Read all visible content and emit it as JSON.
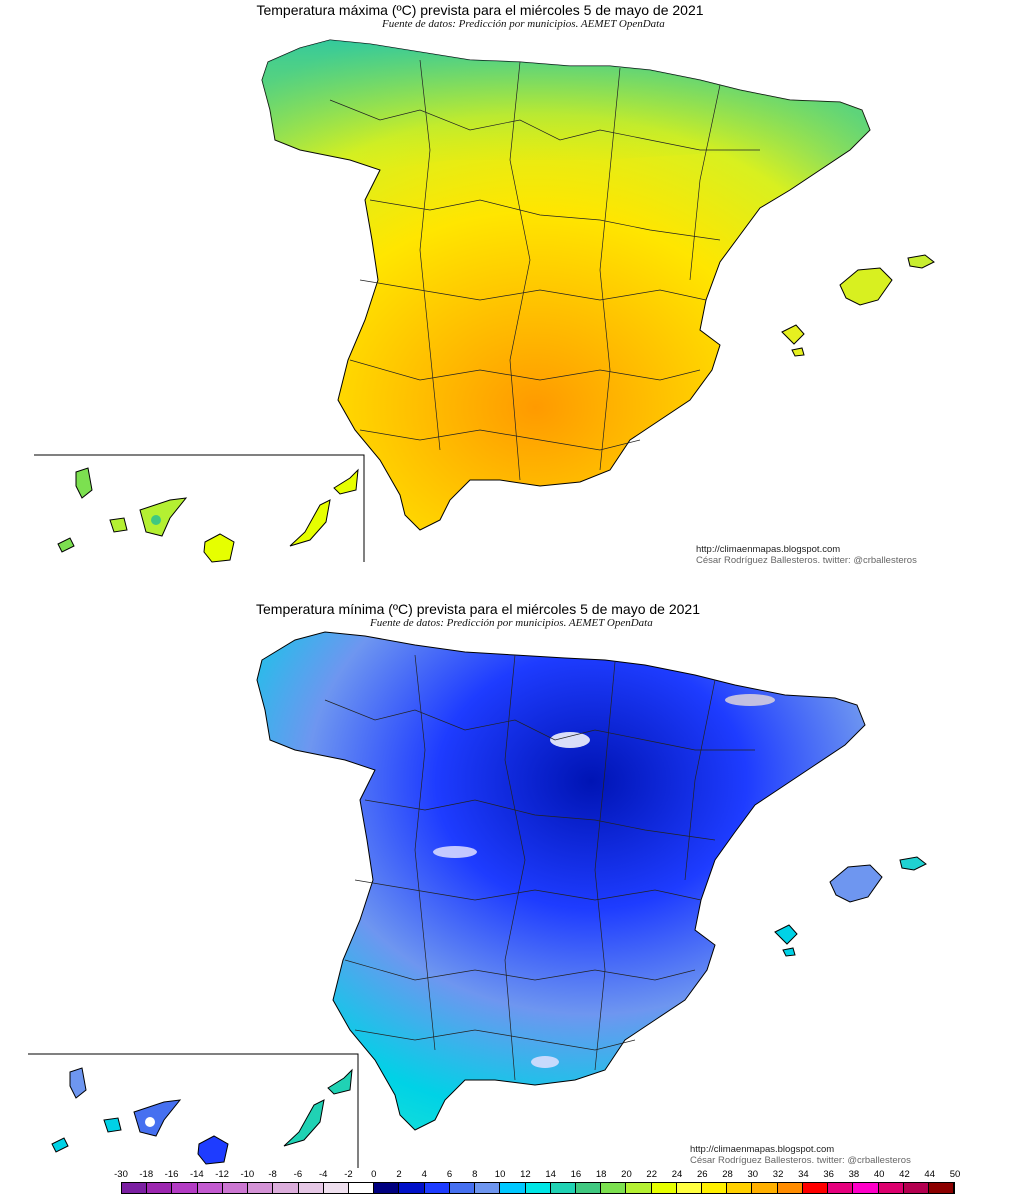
{
  "maps": [
    {
      "title": "Temperatura máxima (ºC) prevista para el miércoles 5 de mayo de 2021",
      "subtitle": "Fuente de datos: Predicción por municipios. AEMET OpenData",
      "credit_url": "http://climaenmapas.blogspot.com",
      "credit_author": "César Rodríguez Ballesteros. twitter: @crballesteros"
    },
    {
      "title": "Temperatura mínima (ºC) prevista para el miércoles 5 de mayo de 2021",
      "subtitle": "Fuente de datos: Predicción por municipios. AEMET OpenData",
      "credit_url": "http://climaenmapas.blogspot.com",
      "credit_author": "César Rodríguez Ballesteros. twitter: @crballesteros"
    }
  ],
  "legend": {
    "ticks": [
      "-30",
      "-18",
      "-16",
      "-14",
      "-12",
      "-10",
      "-8",
      "-6",
      "-4",
      "-2",
      "0",
      "2",
      "4",
      "6",
      "8",
      "10",
      "12",
      "14",
      "16",
      "18",
      "20",
      "22",
      "24",
      "26",
      "28",
      "30",
      "32",
      "34",
      "36",
      "38",
      "40",
      "42",
      "44",
      "50"
    ],
    "colors": [
      "#7b1fa2",
      "#9c27b0",
      "#b33cc4",
      "#c35bd0",
      "#cc77d2",
      "#d493d6",
      "#dcaedc",
      "#e6c8e6",
      "#efe0ef",
      "#ffffff",
      "#000080",
      "#0010c8",
      "#1e3cff",
      "#4670f0",
      "#6e96f0",
      "#00c8ff",
      "#00e6e6",
      "#20d2b4",
      "#40c880",
      "#7ce050",
      "#b4f032",
      "#e6ff00",
      "#ffff40",
      "#fff000",
      "#ffd000",
      "#ffb000",
      "#ff8c00",
      "#ff0000",
      "#e6007e",
      "#ff00c8",
      "#dc006e",
      "#b40050",
      "#8c0000"
    ]
  }
}
